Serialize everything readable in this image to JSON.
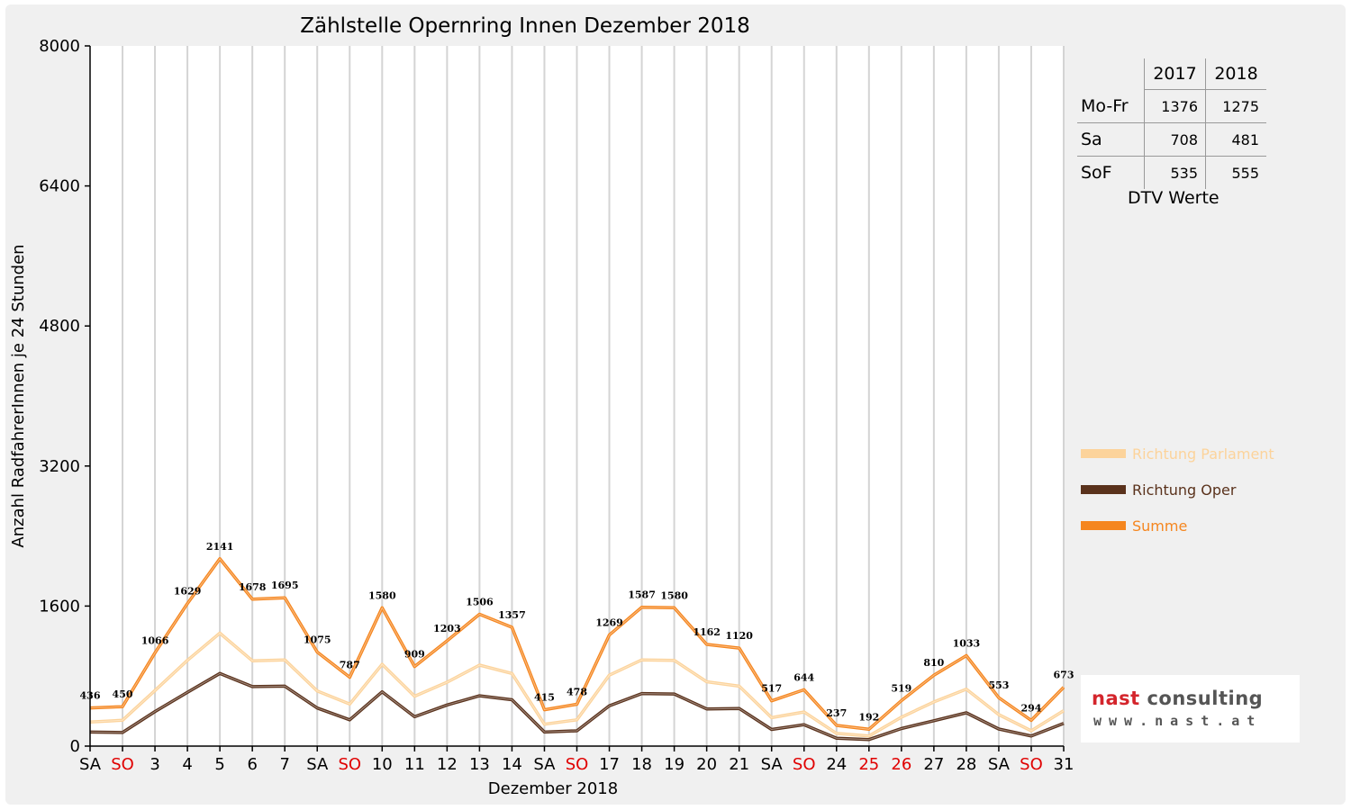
{
  "chart_data": {
    "type": "line",
    "title": "Zählstelle Opernring Innen Dezember 2018",
    "xlabel": "Dezember 2018",
    "ylabel": "Anzahl RadfahrerInnen je 24 Stunden",
    "ylim": [
      0,
      8000
    ],
    "yticks": [
      "0",
      "1600",
      "3200",
      "4800",
      "6400",
      "8000"
    ],
    "grid": "vertical",
    "legend_position": "right",
    "categories": [
      "SA",
      "SO",
      "3",
      "4",
      "5",
      "6",
      "7",
      "SA",
      "SO",
      "10",
      "11",
      "12",
      "13",
      "14",
      "SA",
      "SO",
      "17",
      "18",
      "19",
      "20",
      "21",
      "SA",
      "SO",
      "24",
      "25",
      "26",
      "27",
      "28",
      "SA",
      "SO",
      "31"
    ],
    "category_red": [
      false,
      true,
      false,
      false,
      false,
      false,
      false,
      false,
      true,
      false,
      false,
      false,
      false,
      false,
      false,
      true,
      false,
      false,
      false,
      false,
      false,
      false,
      true,
      false,
      true,
      true,
      false,
      false,
      false,
      true,
      false
    ],
    "series": [
      {
        "name": "Richtung Parlament",
        "color": "#fcd39b",
        "values": [
          275,
          295,
          635,
          980,
          1290,
          975,
          985,
          630,
          480,
          935,
          570,
          730,
          925,
          830,
          250,
          300,
          810,
          985,
          980,
          735,
          685,
          325,
          390,
          145,
          115,
          330,
          505,
          650,
          360,
          175,
          405
        ]
      },
      {
        "name": "Richtung Oper",
        "color": "#5a321c",
        "values": [
          160,
          155,
          395,
          615,
          830,
          680,
          685,
          435,
          300,
          620,
          335,
          470,
          575,
          530,
          160,
          175,
          460,
          600,
          595,
          425,
          430,
          190,
          245,
          90,
          75,
          200,
          290,
          380,
          195,
          115,
          260
        ]
      },
      {
        "name": "Summe",
        "color": "#f5861f",
        "values": [
          436,
          450,
          1066,
          1629,
          2141,
          1678,
          1695,
          1075,
          787,
          1580,
          909,
          1203,
          1506,
          1357,
          415,
          478,
          1269,
          1587,
          1580,
          1162,
          1120,
          517,
          644,
          237,
          192,
          519,
          810,
          1033,
          553,
          294,
          673
        ]
      }
    ],
    "data_labels": [
      "436",
      "450",
      "1066",
      "1629",
      "2141",
      "1678",
      "1695",
      "1075",
      "787",
      "1580",
      "909",
      "1203",
      "1506",
      "1357",
      "415",
      "478",
      "1269",
      "1587",
      "1580",
      "1162",
      "1120",
      "517",
      "644",
      "237",
      "192",
      "519",
      "810",
      "1033",
      "553",
      "294",
      "673"
    ]
  },
  "dtv_table": {
    "headers": [
      "",
      "2017",
      "2018"
    ],
    "rows": [
      {
        "label": "Mo-Fr",
        "v2017": "1376",
        "v2018": "1275"
      },
      {
        "label": "Sa",
        "v2017": "708",
        "v2018": "481"
      },
      {
        "label": "SoF",
        "v2017": "535",
        "v2018": "555"
      }
    ],
    "caption": "DTV Werte"
  },
  "logo": {
    "name_prefix": "nast",
    "name_suffix": " consulting",
    "url": "www.nast.at",
    "brand_color": "#d4252c"
  }
}
